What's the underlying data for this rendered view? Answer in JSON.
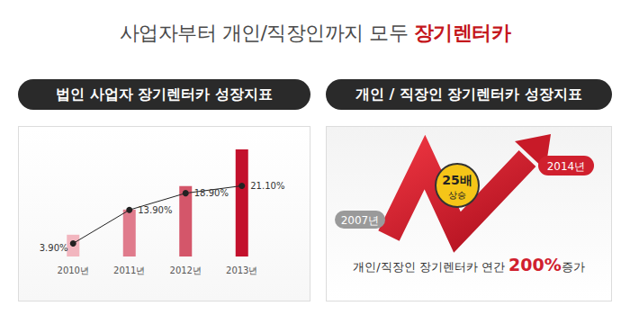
{
  "headline": {
    "text": "사업자부터 개인/직장인까지 모두 ",
    "highlight": "장기렌터카"
  },
  "chart_data": {
    "type": "bar",
    "title": "법인 사업자 장기렌터카 성장지표",
    "categories": [
      "2010년",
      "2011년",
      "2012년",
      "2013년"
    ],
    "series": [
      {
        "type": "bar",
        "colors": [
          "#f2b6bf",
          "#e07b8c",
          "#d4566a",
          "#c3102c"
        ],
        "values": [
          6.5,
          14,
          21,
          32
        ]
      },
      {
        "type": "line",
        "color": "#222222",
        "marker": "circle",
        "line_style": "solid",
        "data_labels": true,
        "values": [
          3.9,
          13.9,
          18.9,
          21.1
        ],
        "value_labels": [
          "3.90%",
          "13.90%",
          "18.90%",
          "21.10%"
        ]
      }
    ],
    "ylim": [
      0,
      36
    ],
    "grid": false,
    "tick_labels": "x"
  },
  "right_panel": {
    "title": "개인 / 직장인 장기렌터카 성장지표",
    "start_label": "2007년",
    "end_label": "2014년",
    "badge": {
      "text": "25배",
      "caption": "상승"
    },
    "caption": {
      "before": "개인/직장인 장기렌터카 연간 ",
      "highlight": "200%",
      "after": "증가"
    }
  }
}
